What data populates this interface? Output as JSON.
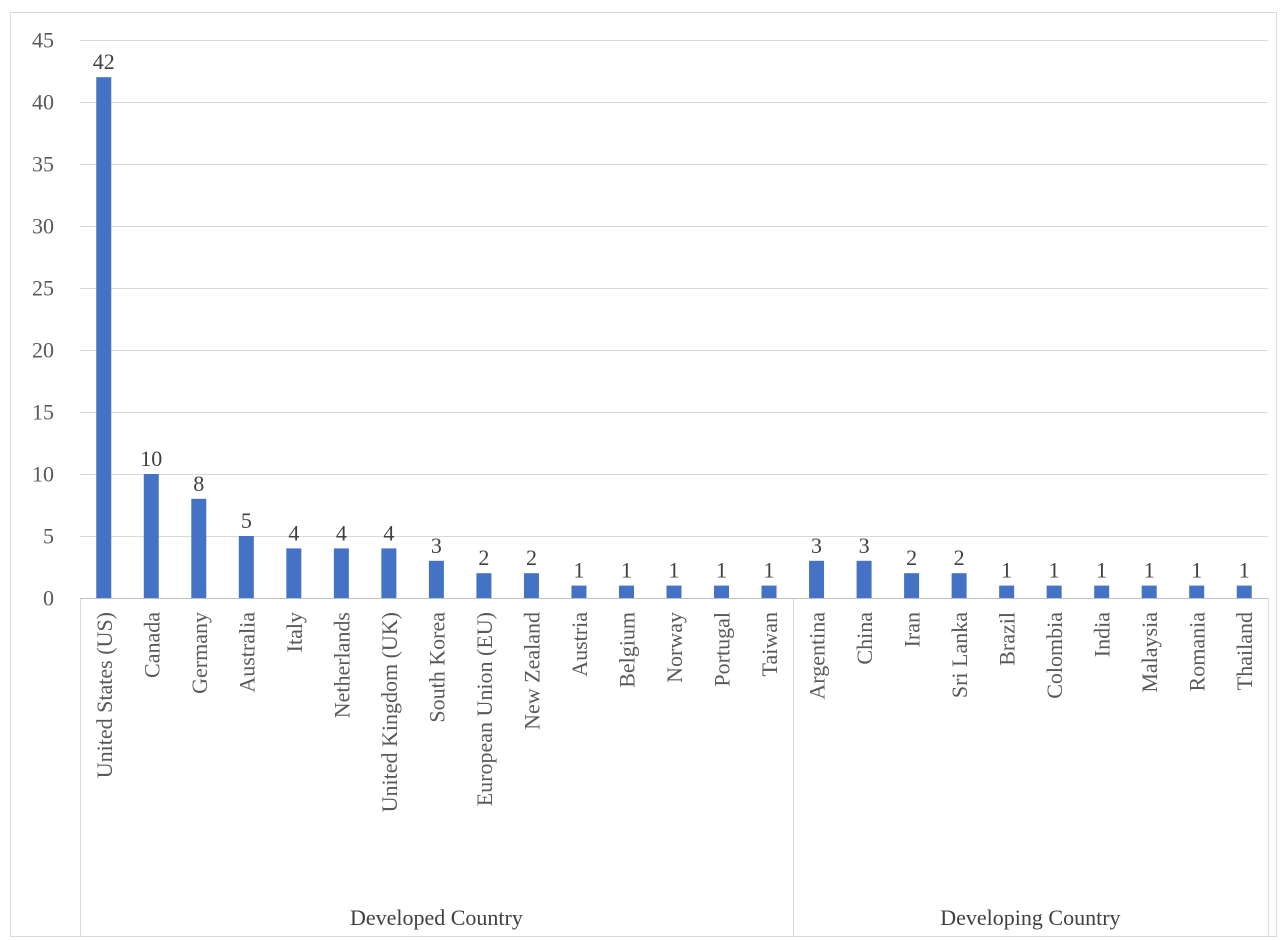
{
  "chart_data": {
    "type": "bar",
    "title": "",
    "xlabel": "",
    "ylabel": "",
    "ylim": [
      0,
      45
    ],
    "yticks": [
      0,
      5,
      10,
      15,
      20,
      25,
      30,
      35,
      40,
      45
    ],
    "grid": true,
    "bar_color": "#4472c4",
    "categories": [
      "United States (US)",
      "Canada",
      "Germany",
      "Australia",
      "Italy",
      "Netherlands",
      "United Kingdom (UK)",
      "South Korea",
      "European Union (EU)",
      "New Zealand",
      "Austria",
      "Belgium",
      "Norway",
      "Portugal",
      "Taiwan",
      "Argentina",
      "China",
      "Iran",
      "Sri Lanka",
      "Brazil",
      "Colombia",
      "India",
      "Malaysia",
      "Romania",
      "Thailand"
    ],
    "values": [
      42,
      10,
      8,
      5,
      4,
      4,
      4,
      3,
      2,
      2,
      1,
      1,
      1,
      1,
      1,
      3,
      3,
      2,
      2,
      1,
      1,
      1,
      1,
      1,
      1
    ],
    "groups": [
      {
        "label": "Developed Country",
        "count": 15
      },
      {
        "label": "Developing Country",
        "count": 10
      }
    ]
  }
}
